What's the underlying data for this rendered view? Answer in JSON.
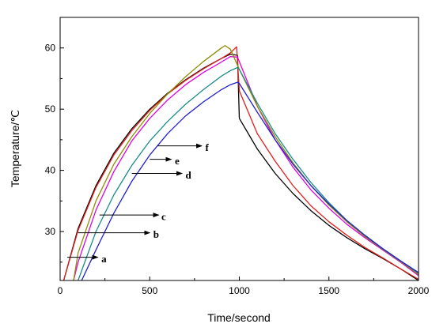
{
  "chart_data": {
    "type": "line",
    "xlabel": "Time/second",
    "ylabel": "Temperature/℃",
    "xlim": [
      0,
      2000
    ],
    "ylim": [
      22,
      65
    ],
    "x_ticks": [
      0,
      500,
      1000,
      1500,
      2000
    ],
    "y_ticks": [
      30,
      40,
      50,
      60
    ],
    "grid": false,
    "series": [
      {
        "name": "a",
        "color": "#000000",
        "x": [
          20,
          100,
          200,
          300,
          400,
          500,
          600,
          700,
          800,
          900,
          950,
          990,
          1000,
          1100,
          1200,
          1300,
          1400,
          1500,
          1600,
          1700,
          1800,
          1900,
          2000
        ],
        "y": [
          22,
          30.5,
          37.5,
          42.8,
          46.8,
          50,
          52.6,
          54.8,
          56.7,
          58.3,
          59,
          58.8,
          48.5,
          43.5,
          39.5,
          36.2,
          33.4,
          31,
          29,
          27.2,
          25.6,
          23.9,
          22
        ]
      },
      {
        "name": "b",
        "color": "#e0201c",
        "x": [
          20,
          100,
          200,
          300,
          400,
          500,
          600,
          700,
          800,
          900,
          950,
          985,
          1000,
          1100,
          1200,
          1300,
          1400,
          1500,
          1600,
          1700,
          1800,
          1900,
          2000
        ],
        "y": [
          22,
          30.2,
          37.2,
          42.5,
          46.5,
          49.8,
          52.5,
          54.7,
          56.6,
          58.3,
          59.2,
          60.2,
          53,
          46,
          41.5,
          37.5,
          34.2,
          31.6,
          29.4,
          27.4,
          25.7,
          23.9,
          22.2
        ]
      },
      {
        "name": "c",
        "color": "#e000e0",
        "x": [
          75,
          100,
          200,
          300,
          400,
          500,
          600,
          700,
          800,
          900,
          950,
          990,
          1100,
          1200,
          1300,
          1400,
          1500,
          1600,
          1700,
          1800,
          1900,
          2000
        ],
        "y": [
          22,
          25,
          33.5,
          39.8,
          44.8,
          48.5,
          51.5,
          54,
          56,
          57.7,
          58.6,
          58.5,
          50.5,
          45,
          40.5,
          36.8,
          33.8,
          31.2,
          29,
          27,
          25,
          22.8
        ]
      },
      {
        "name": "d",
        "color": "#8c8c00",
        "x": [
          75,
          100,
          200,
          300,
          400,
          500,
          600,
          700,
          800,
          900,
          920,
          950,
          1000,
          1100,
          1200,
          1300,
          1400,
          1500,
          1600,
          1700,
          1800,
          1900,
          2000
        ],
        "y": [
          22,
          26.5,
          35,
          41,
          45.5,
          49.3,
          52.5,
          55.3,
          57.8,
          60,
          60.4,
          59.8,
          56.5,
          50.5,
          45.5,
          41.2,
          37.5,
          34.3,
          31.6,
          29.2,
          27.1,
          25.1,
          23
        ]
      },
      {
        "name": "e",
        "color": "#1a8c8c",
        "x": [
          100,
          200,
          300,
          400,
          500,
          600,
          700,
          800,
          900,
          950,
          990,
          1000,
          1100,
          1200,
          1300,
          1400,
          1500,
          1600,
          1700,
          1800,
          1900,
          2000
        ],
        "y": [
          22,
          30,
          36,
          40.8,
          44.8,
          48,
          50.8,
          53.2,
          55.4,
          56.3,
          56.8,
          56.5,
          51,
          46,
          41.8,
          38,
          34.7,
          31.8,
          29.4,
          27.2,
          25.2,
          23.2
        ]
      },
      {
        "name": "f",
        "color": "#2020d0",
        "x": [
          120,
          200,
          300,
          400,
          500,
          600,
          700,
          800,
          900,
          950,
          990,
          1000,
          1100,
          1200,
          1300,
          1400,
          1500,
          1600,
          1700,
          1800,
          1900,
          2000
        ],
        "y": [
          22,
          27,
          33,
          38.2,
          42.5,
          46,
          48.9,
          51.2,
          53.2,
          54,
          54.4,
          54.2,
          49.5,
          45,
          41,
          37.5,
          34.5,
          31.8,
          29.4,
          27.2,
          25.2,
          23.3
        ]
      }
    ],
    "annotations": [
      {
        "label": "a",
        "arrow_from": [
          40,
          25.8
        ],
        "arrow_to": [
          210,
          25.8
        ],
        "label_at": [
          230,
          25.6
        ]
      },
      {
        "label": "b",
        "arrow_from": [
          100,
          29.8
        ],
        "arrow_to": [
          500,
          29.8
        ],
        "label_at": [
          520,
          29.6
        ]
      },
      {
        "label": "c",
        "arrow_from": [
          220,
          32.7
        ],
        "arrow_to": [
          550,
          32.7
        ],
        "label_at": [
          565,
          32.5
        ]
      },
      {
        "label": "d",
        "arrow_from": [
          400,
          39.5
        ],
        "arrow_to": [
          680,
          39.5
        ],
        "label_at": [
          700,
          39.3
        ]
      },
      {
        "label": "e",
        "arrow_from": [
          500,
          41.8
        ],
        "arrow_to": [
          620,
          41.8
        ],
        "label_at": [
          640,
          41.6
        ]
      },
      {
        "label": "f",
        "arrow_from": [
          545,
          44
        ],
        "arrow_to": [
          790,
          44
        ],
        "label_at": [
          810,
          43.8
        ]
      }
    ]
  }
}
